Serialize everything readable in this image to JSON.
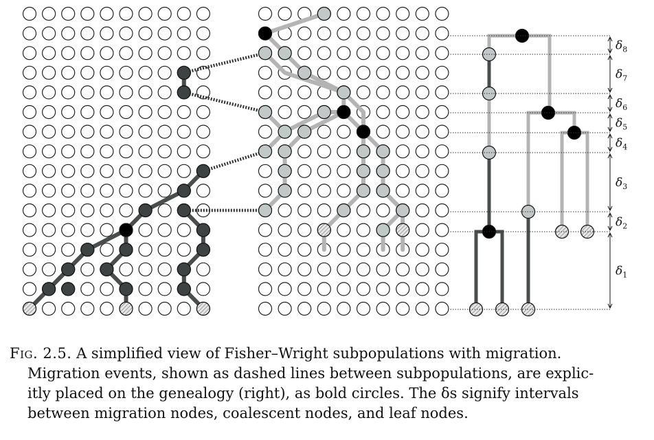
{
  "figure": {
    "colors": {
      "background": "#ffffff",
      "empty_circle_stroke": "#222222",
      "dark_lineage": "#4a4d4d",
      "light_lineage": "#b4b4b4",
      "migration_node": "#000000",
      "light_node_fill": "#c2c7c8",
      "dark_node_fill": "#3d4242",
      "leaf_hatch": "#9a9a9a"
    },
    "deltas": [
      {
        "symbol": "δ",
        "sub": "8"
      },
      {
        "symbol": "δ",
        "sub": "7"
      },
      {
        "symbol": "δ",
        "sub": "6"
      },
      {
        "symbol": "δ",
        "sub": "5"
      },
      {
        "symbol": "δ",
        "sub": "4"
      },
      {
        "symbol": "δ",
        "sub": "3"
      },
      {
        "symbol": "δ",
        "sub": "2"
      },
      {
        "symbol": "δ",
        "sub": "1"
      }
    ]
  },
  "caption": {
    "prefix": "Fig. 2.5.",
    "lines": [
      "A simplified view of Fisher–Wright subpopulations with migration.",
      "Migration events, shown as dashed lines between subpopulations, are explic-",
      "itly placed on the genealogy (right), as bold circles. The δs signify intervals",
      "between migration nodes, coalescent nodes, and leaf nodes."
    ]
  }
}
